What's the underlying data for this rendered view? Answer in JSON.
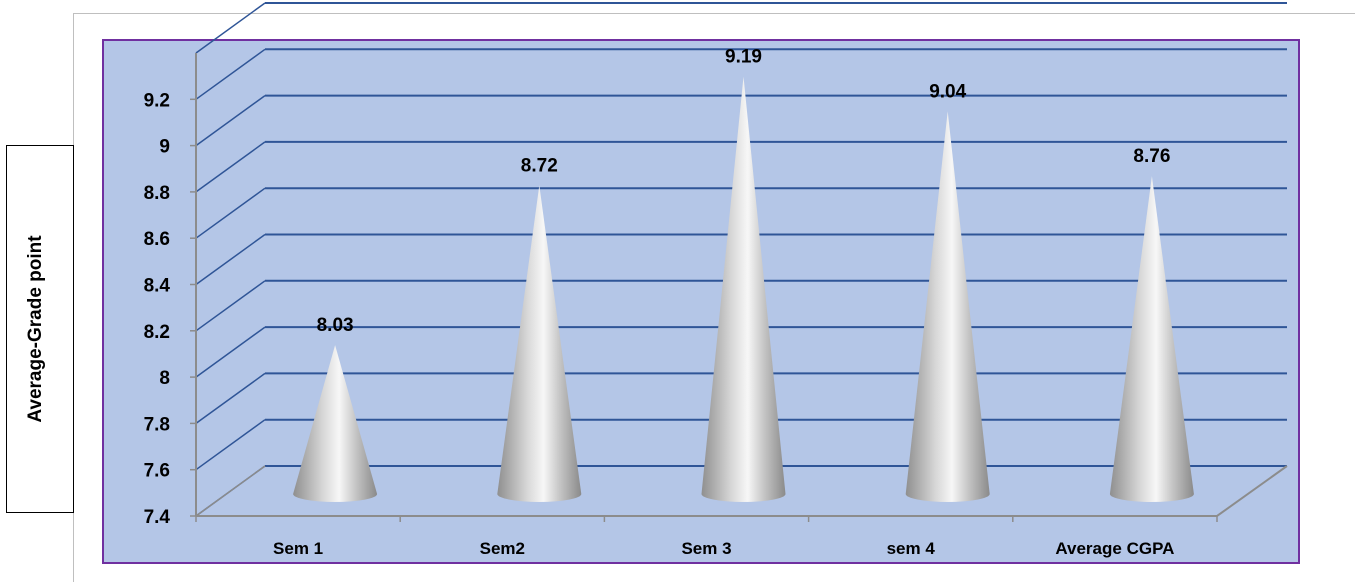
{
  "chart_data": {
    "type": "bar",
    "shape": "cone",
    "categories": [
      "Sem 1",
      "Sem2",
      "Sem 3",
      "sem 4",
      "Average CGPA"
    ],
    "values": [
      8.03,
      8.72,
      9.19,
      9.04,
      8.76
    ],
    "data_labels": [
      "8.03",
      "8.72",
      "9.19",
      "9.04",
      "8.76"
    ],
    "title": "",
    "xlabel": "",
    "ylabel": "Average-Grade point",
    "ylim": [
      7.4,
      9.2
    ],
    "yticks": [
      "7.4",
      "7.6",
      "7.8",
      "8",
      "8.2",
      "8.4",
      "8.6",
      "8.8",
      "9",
      "9.2"
    ],
    "grid": true,
    "legend": "none",
    "colors": {
      "plot_area": "#b4c6e7",
      "plot_border": "#7030a0",
      "gridline": "#2f5597",
      "cone": "#c0c0c0"
    }
  }
}
